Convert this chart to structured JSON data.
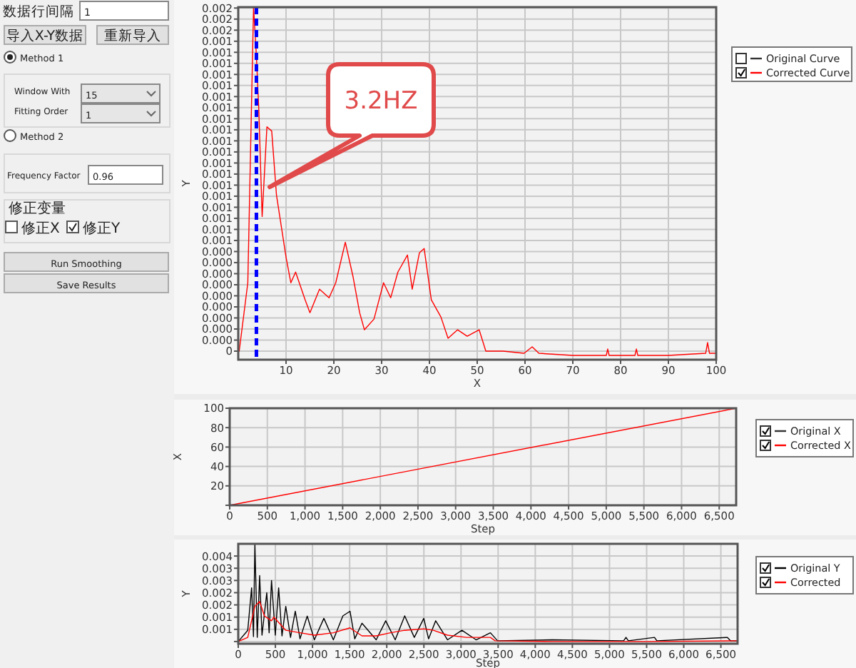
{
  "chart_data": [
    {
      "type": "other",
      "annotations": [
        "数据行间隔",
        "1",
        "导入X-Y数据",
        "重新导入",
        "Method 1",
        "Window With",
        "15",
        "Fitting Order",
        "1",
        "Method 2",
        "Frequency Factor",
        "0.96",
        "修正变量",
        "修正X",
        "修正Y",
        "Run Smoothing",
        "Save Results"
      ]
    },
    {
      "type": "line",
      "xlabel": "X",
      "ylabel": "Y",
      "xlim": [
        0,
        100
      ],
      "ylim": [
        -4e-05,
        0.00161
      ],
      "grid": true,
      "legend": "right",
      "xticks": [
        10,
        20,
        30,
        40,
        50,
        60,
        70,
        80,
        90,
        100
      ],
      "yticks": [
        {
          "value": 0,
          "label": "0"
        },
        {
          "value": 5.18e-05,
          "label": "0.000"
        },
        {
          "value": 0.0001036,
          "label": "0.000"
        },
        {
          "value": 0.0001554,
          "label": "0.000"
        },
        {
          "value": 0.0002072,
          "label": "0.000"
        },
        {
          "value": 0.000259,
          "label": "0.000"
        },
        {
          "value": 0.0003108,
          "label": "0.000"
        },
        {
          "value": 0.0003626,
          "label": "0.000"
        },
        {
          "value": 0.0004144,
          "label": "0.000"
        },
        {
          "value": 0.0004662,
          "label": "0.000"
        },
        {
          "value": 0.000518,
          "label": "0.001"
        },
        {
          "value": 0.0005698,
          "label": "0.001"
        },
        {
          "value": 0.0006216,
          "label": "0.001"
        },
        {
          "value": 0.0006734,
          "label": "0.001"
        },
        {
          "value": 0.0007252,
          "label": "0.001"
        },
        {
          "value": 0.000777,
          "label": "0.001"
        },
        {
          "value": 0.0008288,
          "label": "0.001"
        },
        {
          "value": 0.0008806,
          "label": "0.001"
        },
        {
          "value": 0.0009324,
          "label": "0.001"
        },
        {
          "value": 0.0009842,
          "label": "0.001"
        },
        {
          "value": 0.001036,
          "label": "0.001"
        },
        {
          "value": 0.0010878,
          "label": "0.001"
        },
        {
          "value": 0.0011396,
          "label": "0.001"
        },
        {
          "value": 0.0011914,
          "label": "0.001"
        },
        {
          "value": 0.0012432,
          "label": "0.001"
        },
        {
          "value": 0.001295,
          "label": "0.001"
        },
        {
          "value": 0.0013468,
          "label": "0.001"
        },
        {
          "value": 0.0013986,
          "label": "0.001"
        },
        {
          "value": 0.0014504,
          "label": "0.001"
        },
        {
          "value": 0.0015022,
          "label": "0.002"
        },
        {
          "value": 0.001554,
          "label": "0.002"
        },
        {
          "value": 0.0016058,
          "label": "0.002"
        }
      ],
      "series": [
        {
          "name": "Original Curve",
          "color": "#333333"
        },
        {
          "name": "Corrected Curve",
          "color": "#ff0000",
          "x": [
            0.2,
            2,
            3.2,
            3.8,
            4.3,
            5,
            6,
            7,
            8,
            10,
            11,
            12,
            14,
            15,
            17,
            19,
            20.4,
            22.4,
            24,
            25.4,
            26.4,
            28.4,
            30.4,
            31.9,
            33.4,
            35.4,
            36.4,
            37.9,
            38.9,
            40.4,
            42.4,
            43.9,
            45.9,
            47.9,
            50.4,
            51.8,
            55.4,
            59.8,
            61.5,
            62.9,
            70,
            77,
            77.3,
            77.6,
            83,
            83.3,
            83.6,
            90,
            97.8,
            98.2,
            98.6,
            100
          ],
          "values": [
            0,
            0.00032,
            0.00161,
            0.00138,
            0.00113,
            0.00063,
            0.00105,
            0.00103,
            0.00073,
            0.00044,
            0.00032,
            0.00037,
            0.00024,
            0.00018,
            0.00029,
            0.00025,
            0.00032,
            0.00051,
            0.00035,
            0.00018,
            0.0001,
            0.00015,
            0.00032,
            0.00025,
            0.00037,
            0.00045,
            0.00029,
            0.00046,
            0.00048,
            0.00024,
            0.00016,
            6e-05,
            0.0001,
            7e-05,
            0.0001,
            0,
            0,
            -1e-05,
            2e-05,
            -1e-05,
            -2e-05,
            -2e-05,
            1e-05,
            -2e-05,
            -2e-05,
            1e-05,
            -2e-05,
            -2e-05,
            -1e-05,
            4e-05,
            -1e-05,
            -1e-05
          ]
        }
      ],
      "ref_lines": [
        {
          "axis": "x",
          "value": 3.8,
          "color": "#0000ff",
          "line_style": "dashed"
        }
      ],
      "annotations": [
        "3.2HZ"
      ]
    },
    {
      "type": "line",
      "xlabel": "Step",
      "ylabel": "X",
      "xlim": [
        0,
        6725
      ],
      "ylim": [
        0,
        100
      ],
      "grid": true,
      "legend": "right",
      "xticks": [
        0,
        500,
        {
          "value": 1000,
          "label": "1,000"
        },
        {
          "value": 1500,
          "label": "1,500"
        },
        {
          "value": 2000,
          "label": "2,000"
        },
        {
          "value": 2500,
          "label": "2,500"
        },
        {
          "value": 3000,
          "label": "3,000"
        },
        {
          "value": 3500,
          "label": "3,500"
        },
        {
          "value": 4000,
          "label": "4,000"
        },
        {
          "value": 4500,
          "label": "4,500"
        },
        {
          "value": 5000,
          "label": "5,000"
        },
        {
          "value": 5500,
          "label": "5,500"
        },
        {
          "value": 6000,
          "label": "6,000"
        },
        {
          "value": 6500,
          "label": "6,500"
        }
      ],
      "yticks": [
        {
          "value": 0,
          "label": null
        },
        20,
        40,
        60,
        80,
        100
      ],
      "series": [
        {
          "name": "Original X",
          "color": "#333333"
        },
        {
          "name": "Corrected X",
          "color": "#ff0000",
          "x": [
            0,
            6725
          ],
          "values": [
            0,
            100
          ]
        }
      ]
    },
    {
      "type": "line",
      "xlabel": "Step",
      "ylabel": "Y",
      "xlim": [
        0,
        6725
      ],
      "ylim": [
        -9e-05,
        0.004
      ],
      "grid": true,
      "legend": "right",
      "xticks": [
        0,
        500,
        {
          "value": 1000,
          "label": "1,000"
        },
        {
          "value": 1500,
          "label": "1,500"
        },
        {
          "value": 2000,
          "label": "2,000"
        },
        {
          "value": 2500,
          "label": "2,500"
        },
        {
          "value": 3000,
          "label": "3,000"
        },
        {
          "value": 3500,
          "label": "3,500"
        },
        {
          "value": 4000,
          "label": "4,000"
        },
        {
          "value": 4500,
          "label": "4,500"
        },
        {
          "value": 5000,
          "label": "5,000"
        },
        {
          "value": 5500,
          "label": "5,500"
        },
        {
          "value": 6000,
          "label": "6,000"
        },
        {
          "value": 6500,
          "label": "6,500"
        }
      ],
      "yticks": [
        {
          "value": 0,
          "label": null
        },
        {
          "value": 0.0005,
          "label": "0.001"
        },
        0.001,
        {
          "value": 0.0015,
          "label": "0.002"
        },
        0.002,
        {
          "value": 0.0025,
          "label": "0.003"
        },
        0.003,
        {
          "value": 0.0035,
          "label": "0.004"
        }
      ],
      "series": [
        {
          "name": "Original Y",
          "color": "#000000",
          "x": [
            0,
            128,
            180,
            205,
            224,
            256,
            288,
            320,
            384,
            416,
            448,
            499,
            544,
            589,
            640,
            704,
            768,
            832,
            929,
            1025,
            1153,
            1281,
            1409,
            1505,
            1569,
            1666,
            1858,
            1986,
            2114,
            2242,
            2371,
            2499,
            2563,
            2659,
            2819,
            3012,
            3204,
            3396,
            3492,
            4229,
            5190,
            5222,
            5254,
            5606,
            5638,
            6586,
            6631,
            6725
          ],
          "values": [
            0,
            0.00046,
            0.0022,
            0.0002,
            0.004,
            0.00017,
            0.0027,
            0.00026,
            0.002,
            0.00036,
            0.0025,
            0.00026,
            0.0022,
            0.00023,
            0.00144,
            0.00017,
            0.00124,
            0.00011,
            0.00104,
            7e-05,
            0.00095,
            7e-05,
            0.00105,
            0.00124,
            0.00011,
            0.00075,
            7e-05,
            0.00085,
            7e-05,
            0.00105,
            0.00017,
            0.00095,
            0.00011,
            0.00085,
            7e-05,
            0.00046,
            7e-05,
            0.00036,
            3e-05,
            7e-05,
            3e-05,
            0.00017,
            3e-05,
            0.00017,
            3e-05,
            0.00017,
            3e-05,
            3e-05
          ]
        },
        {
          "name": "Corrected",
          "color": "#ff0000",
          "x": [
            0,
            128,
            224,
            288,
            352,
            448,
            480,
            640,
            832,
            1025,
            1281,
            1505,
            1666,
            1858,
            2050,
            2242,
            2499,
            2627,
            2819,
            3076,
            3396,
            3460,
            4229,
            5510,
            6725
          ],
          "values": [
            0,
            0.00017,
            0.00144,
            0.00164,
            0.00105,
            0.00085,
            0.001,
            0.00046,
            0.00036,
            0.00026,
            0.00036,
            0.00056,
            0.00023,
            0.00023,
            0.00036,
            0.00046,
            0.00052,
            0.00046,
            0.00026,
            0.00017,
            0.00017,
            3e-05,
            0,
            0,
            3e-05
          ]
        }
      ]
    }
  ]
}
